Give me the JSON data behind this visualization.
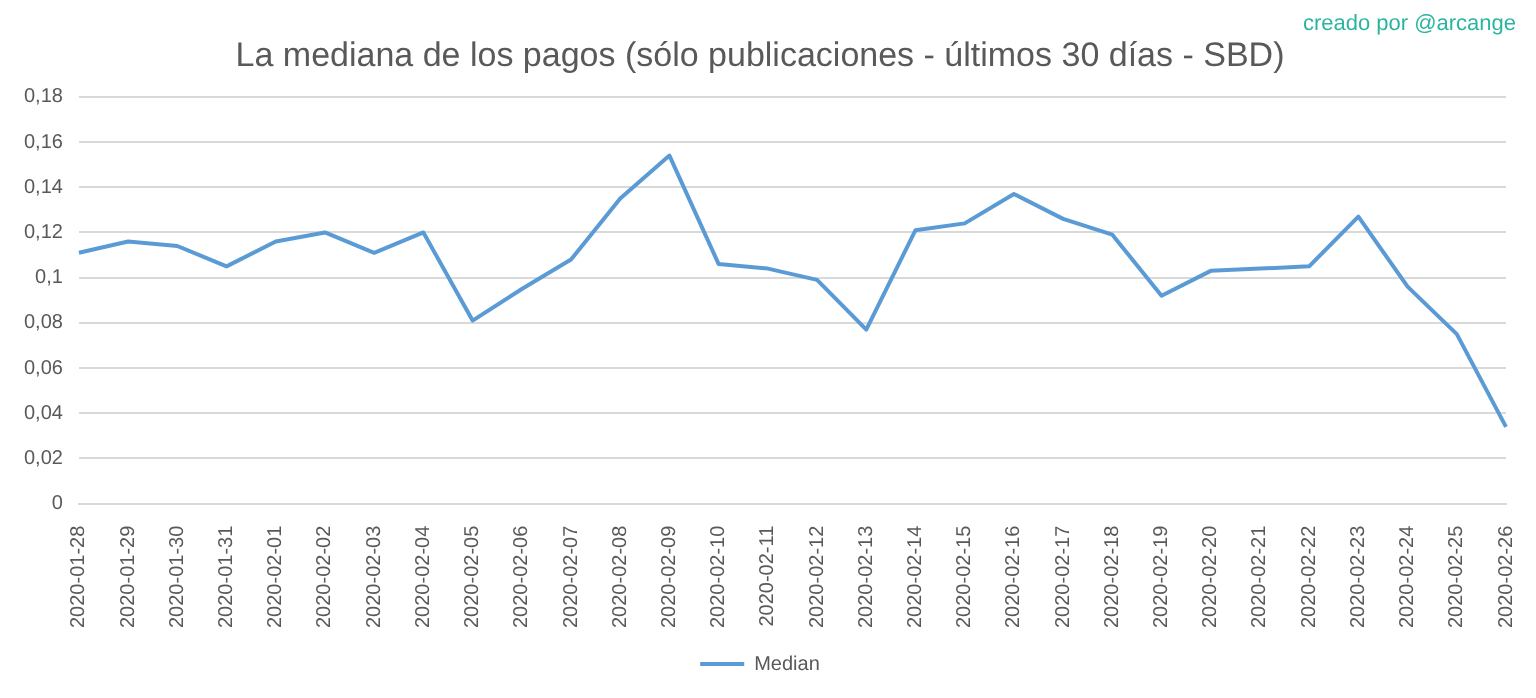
{
  "chart_data": {
    "type": "line",
    "title": "La mediana de los pagos (sólo publicaciones - últimos 30 días - SBD)",
    "annotations": [
      "creado por @arcange"
    ],
    "categories": [
      "2020-01-28",
      "2020-01-29",
      "2020-01-30",
      "2020-01-31",
      "2020-02-01",
      "2020-02-02",
      "2020-02-03",
      "2020-02-04",
      "2020-02-05",
      "2020-02-06",
      "2020-02-07",
      "2020-02-08",
      "2020-02-09",
      "2020-02-10",
      "2020-02-11",
      "2020-02-12",
      "2020-02-13",
      "2020-02-14",
      "2020-02-15",
      "2020-02-16",
      "2020-02-17",
      "2020-02-18",
      "2020-02-19",
      "2020-02-20",
      "2020-02-21",
      "2020-02-22",
      "2020-02-23",
      "2020-02-24",
      "2020-02-25",
      "2020-02-26"
    ],
    "series": [
      {
        "name": "Median",
        "color": "#5b9bd5",
        "values": [
          0.111,
          0.116,
          0.114,
          0.105,
          0.116,
          0.12,
          0.111,
          0.12,
          0.081,
          0.095,
          0.108,
          0.135,
          0.154,
          0.106,
          0.104,
          0.099,
          0.077,
          0.121,
          0.124,
          0.137,
          0.126,
          0.119,
          0.092,
          0.103,
          0.104,
          0.105,
          0.127,
          0.096,
          0.075,
          0.034
        ]
      }
    ],
    "ylim": [
      0,
      0.18
    ],
    "yticks": [
      {
        "value": 0,
        "label": "0"
      },
      {
        "value": 0.02,
        "label": "0,02"
      },
      {
        "value": 0.04,
        "label": "0,04"
      },
      {
        "value": 0.06,
        "label": "0,06"
      },
      {
        "value": 0.08,
        "label": "0,08"
      },
      {
        "value": 0.1,
        "label": "0,1"
      },
      {
        "value": 0.12,
        "label": "0,12"
      },
      {
        "value": 0.14,
        "label": "0,14"
      },
      {
        "value": 0.16,
        "label": "0,16"
      },
      {
        "value": 0.18,
        "label": "0,18"
      }
    ],
    "grid": "y",
    "legend": "bottom",
    "marker": "none",
    "line_style": "solid"
  }
}
